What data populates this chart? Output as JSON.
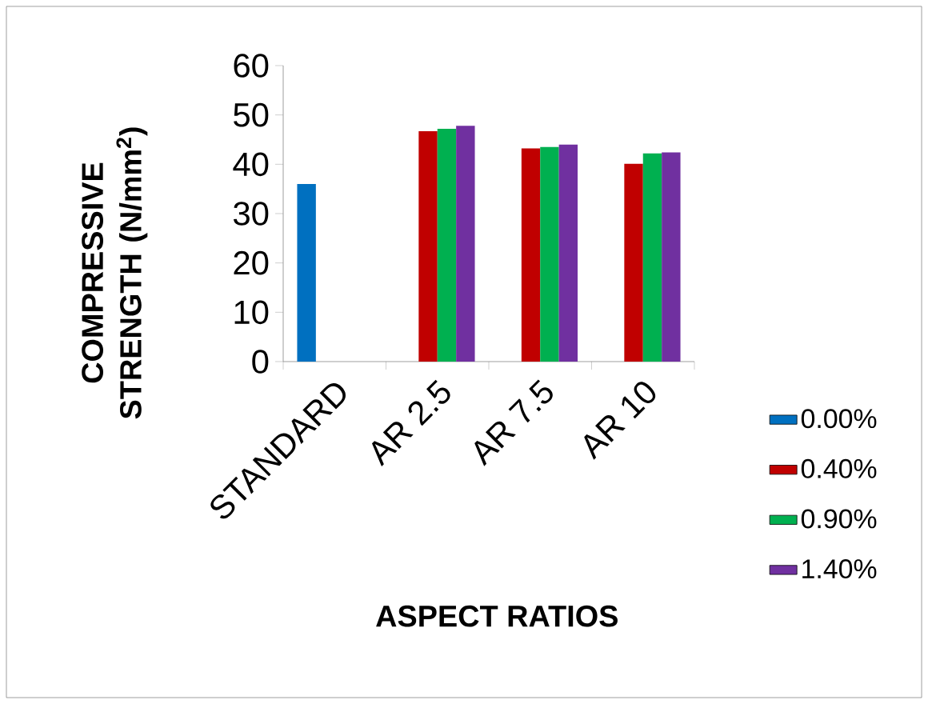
{
  "chart_data": {
    "type": "bar",
    "xlabel": "ASPECT RATIOS",
    "ylabel": "COMPRESSIVE STRENGTH (N/mm$^{2}$)",
    "categories": [
      "STANDARD",
      "AR 2.5",
      "AR 7.5",
      "AR 10"
    ],
    "series": [
      {
        "name": "0.00%",
        "color": "#0070c0",
        "values": [
          36,
          null,
          null,
          null
        ]
      },
      {
        "name": "0.40%",
        "color": "#c00000",
        "values": [
          null,
          46.7,
          43.2,
          40.1
        ]
      },
      {
        "name": "0.90%",
        "color": "#00b050",
        "values": [
          null,
          47.2,
          43.5,
          42.2
        ]
      },
      {
        "name": "1.40%",
        "color": "#7030a0",
        "values": [
          null,
          47.8,
          44.0,
          42.4
        ]
      }
    ],
    "ylim": [
      0,
      60
    ],
    "yticks": [
      0,
      10,
      20,
      30,
      40,
      50,
      60
    ],
    "legend": "right"
  }
}
